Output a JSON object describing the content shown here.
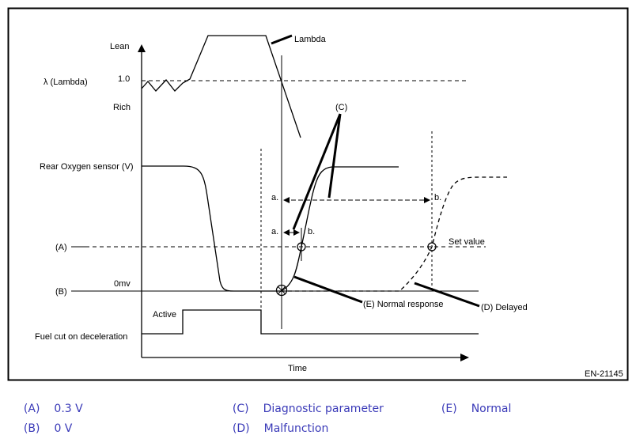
{
  "diagram": {
    "labels": {
      "lean": "Lean",
      "lambda_axis": "λ  (Lambda)",
      "one_point_zero": "1.0",
      "rich": "Rich",
      "lambda_callout": "Lambda",
      "rear_o2": "Rear Oxygen sensor (V)",
      "a_marker": "(A)",
      "b_marker": "(B)",
      "zero_mv": "0mv",
      "active": "Active",
      "fuel_cut": "Fuel cut on deceleration",
      "time": "Time",
      "set_value": "Set value",
      "c_callout": "(C)",
      "e_callout": "(E) Normal response",
      "d_callout": "(D) Delayed",
      "a_upper": "a.",
      "b_upper": "b.",
      "a_lower": "a.",
      "b_lower": "b.",
      "code": "EN-21145"
    }
  },
  "legend": [
    {
      "key": "(A)",
      "value": "0.3 V"
    },
    {
      "key": "(B)",
      "value": "0 V"
    },
    {
      "key": "(C)",
      "value": "Diagnostic parameter"
    },
    {
      "key": "(D)",
      "value": "Malfunction"
    },
    {
      "key": "(E)",
      "value": "Normal"
    }
  ]
}
